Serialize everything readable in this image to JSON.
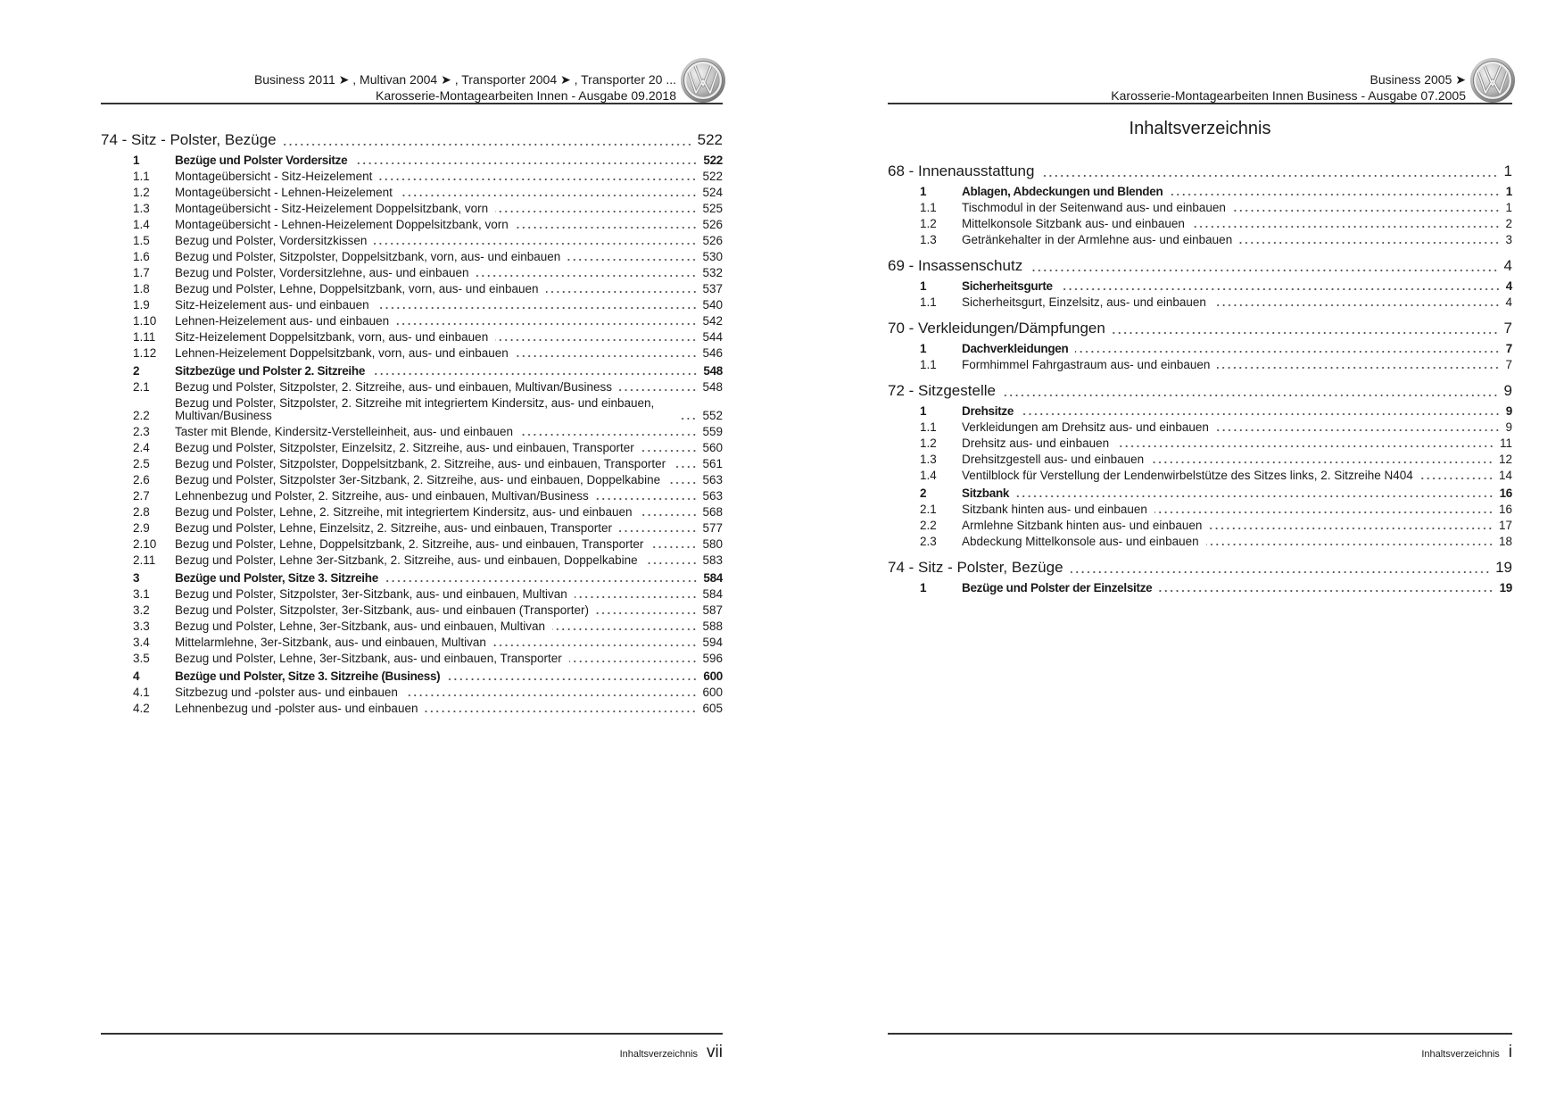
{
  "left_page": {
    "header": {
      "line1": "Business 2011 ➤ , Multivan 2004 ➤ , Transporter 2004 ➤ , Transporter 20 ...",
      "line2": "Karosserie-Montagearbeiten Innen - Ausgabe 09.2018",
      "logo": "VW"
    },
    "entries": [
      {
        "type": "chapter",
        "num": "",
        "title": "74 - Sitz - Polster, Bezüge",
        "page": "522"
      },
      {
        "type": "section",
        "num": "1",
        "title": "Bezüge und Polster Vordersitze",
        "page": "522"
      },
      {
        "type": "item",
        "num": "1.1",
        "title": "Montageübersicht - Sitz-Heizelement",
        "page": "522"
      },
      {
        "type": "item",
        "num": "1.2",
        "title": "Montageübersicht - Lehnen-Heizelement",
        "page": "524"
      },
      {
        "type": "item",
        "num": "1.3",
        "title": "Montageübersicht - Sitz-Heizelement Doppelsitzbank, vorn",
        "page": "525"
      },
      {
        "type": "item",
        "num": "1.4",
        "title": "Montageübersicht - Lehnen-Heizelement Doppelsitzbank, vorn",
        "page": "526"
      },
      {
        "type": "item",
        "num": "1.5",
        "title": "Bezug und Polster, Vordersitzkissen",
        "page": "526"
      },
      {
        "type": "item",
        "num": "1.6",
        "title": "Bezug und Polster, Sitzpolster, Doppelsitzbank, vorn, aus- und einbauen",
        "page": "530"
      },
      {
        "type": "item",
        "num": "1.7",
        "title": "Bezug und Polster, Vordersitzlehne, aus- und einbauen",
        "page": "532"
      },
      {
        "type": "item",
        "num": "1.8",
        "title": "Bezug und Polster, Lehne, Doppelsitzbank, vorn, aus- und einbauen",
        "page": "537"
      },
      {
        "type": "item",
        "num": "1.9",
        "title": "Sitz-Heizelement aus- und einbauen",
        "page": "540"
      },
      {
        "type": "item",
        "num": "1.10",
        "title": "Lehnen-Heizelement aus- und einbauen",
        "page": "542"
      },
      {
        "type": "item",
        "num": "1.11",
        "title": "Sitz-Heizelement Doppelsitzbank, vorn, aus- und einbauen",
        "page": "544"
      },
      {
        "type": "item",
        "num": "1.12",
        "title": "Lehnen-Heizelement Doppelsitzbank, vorn, aus- und einbauen",
        "page": "546"
      },
      {
        "type": "section",
        "num": "2",
        "title": "Sitzbezüge und Polster 2. Sitzreihe",
        "page": "548"
      },
      {
        "type": "item",
        "num": "2.1",
        "title": "Bezug und Polster, Sitzpolster, 2. Sitzreihe, aus- und einbauen, Multivan/Business",
        "page": "548"
      },
      {
        "type": "item",
        "num": "2.2",
        "title": "Bezug und Polster, Sitzpolster, 2. Sitzreihe mit integriertem Kindersitz, aus- und einbauen, Multivan/Business",
        "page": "552"
      },
      {
        "type": "item",
        "num": "2.3",
        "title": "Taster mit Blende, Kindersitz-Verstelleinheit, aus- und einbauen",
        "page": "559"
      },
      {
        "type": "item",
        "num": "2.4",
        "title": "Bezug und Polster, Sitzpolster, Einzelsitz, 2. Sitzreihe, aus- und einbauen, Transporter",
        "page": "560"
      },
      {
        "type": "item",
        "num": "2.5",
        "title": "Bezug und Polster, Sitzpolster, Doppelsitzbank, 2. Sitzreihe, aus- und einbauen, Transporter",
        "page": "561"
      },
      {
        "type": "item",
        "num": "2.6",
        "title": "Bezug und Polster, Sitzpolster 3er-Sitzbank, 2. Sitzreihe, aus- und einbauen, Doppelkabine",
        "page": "563"
      },
      {
        "type": "item",
        "num": "2.7",
        "title": "Lehnenbezug und Polster, 2. Sitzreihe, aus- und einbauen, Multivan/Business",
        "page": "563"
      },
      {
        "type": "item",
        "num": "2.8",
        "title": "Bezug und Polster, Lehne, 2. Sitzreihe, mit integriertem Kindersitz, aus- und einbauen",
        "page": "568"
      },
      {
        "type": "item",
        "num": "2.9",
        "title": "Bezug und Polster, Lehne, Einzelsitz, 2. Sitzreihe, aus- und einbauen, Transporter",
        "page": "577"
      },
      {
        "type": "item",
        "num": "2.10",
        "title": "Bezug und Polster, Lehne, Doppelsitzbank, 2. Sitzreihe, aus- und einbauen, Transporter",
        "page": "580"
      },
      {
        "type": "item",
        "num": "2.11",
        "title": "Bezug und Polster, Lehne 3er-Sitzbank, 2. Sitzreihe, aus- und einbauen, Doppelkabine",
        "page": "583"
      },
      {
        "type": "section",
        "num": "3",
        "title": "Bezüge und Polster, Sitze 3. Sitzreihe",
        "page": "584"
      },
      {
        "type": "item",
        "num": "3.1",
        "title": "Bezug und Polster, Sitzpolster, 3er-Sitzbank, aus- und einbauen, Multivan",
        "page": "584"
      },
      {
        "type": "item",
        "num": "3.2",
        "title": "Bezug und Polster, Sitzpolster, 3er-Sitzbank, aus- und einbauen (Transporter)",
        "page": "587"
      },
      {
        "type": "item",
        "num": "3.3",
        "title": "Bezug und Polster, Lehne, 3er-Sitzbank, aus- und einbauen, Multivan",
        "page": "588"
      },
      {
        "type": "item",
        "num": "3.4",
        "title": "Mittelarmlehne, 3er-Sitzbank, aus- und einbauen, Multivan",
        "page": "594"
      },
      {
        "type": "item",
        "num": "3.5",
        "title": "Bezug und Polster, Lehne, 3er-Sitzbank, aus- und einbauen, Transporter",
        "page": "596"
      },
      {
        "type": "section",
        "num": "4",
        "title": "Bezüge und Polster, Sitze 3. Sitzreihe (Business)",
        "page": "600"
      },
      {
        "type": "item",
        "num": "4.1",
        "title": "Sitzbezug und -polster aus- und einbauen",
        "page": "600"
      },
      {
        "type": "item",
        "num": "4.2",
        "title": "Lehnenbezug und -polster aus- und einbauen",
        "page": "605"
      }
    ],
    "footer": {
      "label": "Inhaltsverzeichnis",
      "page": "vii"
    }
  },
  "right_page": {
    "header": {
      "line1": "Business 2005 ➤",
      "line2": "Karosserie-Montagearbeiten Innen Business - Ausgabe 07.2005",
      "logo": "VW"
    },
    "title": "Inhaltsverzeichnis",
    "entries": [
      {
        "type": "chapter",
        "num": "",
        "title": "68 - Innenausstattung",
        "page": "1"
      },
      {
        "type": "section",
        "num": "1",
        "title": "Ablagen, Abdeckungen und Blenden",
        "page": "1"
      },
      {
        "type": "item",
        "num": "1.1",
        "title": "Tischmodul in der Seitenwand aus- und einbauen",
        "page": "1"
      },
      {
        "type": "item",
        "num": "1.2",
        "title": "Mittelkonsole Sitzbank aus- und einbauen",
        "page": "2"
      },
      {
        "type": "item",
        "num": "1.3",
        "title": "Getränkehalter in der Armlehne aus- und einbauen",
        "page": "3"
      },
      {
        "type": "chapter",
        "num": "",
        "title": "69 - Insassenschutz",
        "page": "4"
      },
      {
        "type": "section",
        "num": "1",
        "title": "Sicherheitsgurte",
        "page": "4"
      },
      {
        "type": "item",
        "num": "1.1",
        "title": "Sicherheitsgurt, Einzelsitz, aus- und einbauen",
        "page": "4"
      },
      {
        "type": "chapter",
        "num": "",
        "title": "70 - Verkleidungen/Dämpfungen",
        "page": "7"
      },
      {
        "type": "section",
        "num": "1",
        "title": "Dachverkleidungen",
        "page": "7"
      },
      {
        "type": "item",
        "num": "1.1",
        "title": "Formhimmel Fahrgastraum aus- und einbauen",
        "page": "7"
      },
      {
        "type": "chapter",
        "num": "",
        "title": "72 - Sitzgestelle",
        "page": "9"
      },
      {
        "type": "section",
        "num": "1",
        "title": "Drehsitze",
        "page": "9"
      },
      {
        "type": "item",
        "num": "1.1",
        "title": "Verkleidungen am Drehsitz aus- und einbauen",
        "page": "9"
      },
      {
        "type": "item",
        "num": "1.2",
        "title": "Drehsitz aus- und einbauen",
        "page": "11"
      },
      {
        "type": "item",
        "num": "1.3",
        "title": "Drehsitzgestell aus- und einbauen",
        "page": "12"
      },
      {
        "type": "item",
        "num": "1.4",
        "title": "Ventilblock für Verstellung der Lendenwirbelstütze des Sitzes links, 2. Sitzreihe N404",
        "page": "14"
      },
      {
        "type": "section",
        "num": "2",
        "title": "Sitzbank",
        "page": "16"
      },
      {
        "type": "item",
        "num": "2.1",
        "title": "Sitzbank hinten aus- und einbauen",
        "page": "16"
      },
      {
        "type": "item",
        "num": "2.2",
        "title": "Armlehne Sitzbank hinten aus- und einbauen",
        "page": "17"
      },
      {
        "type": "item",
        "num": "2.3",
        "title": "Abdeckung Mittelkonsole aus- und einbauen",
        "page": "18"
      },
      {
        "type": "chapter",
        "num": "",
        "title": "74 - Sitz - Polster, Bezüge",
        "page": "19"
      },
      {
        "type": "section",
        "num": "1",
        "title": "Bezüge und Polster der Einzelsitze",
        "page": "19"
      }
    ],
    "footer": {
      "label": "Inhaltsverzeichnis",
      "page": "i"
    }
  }
}
